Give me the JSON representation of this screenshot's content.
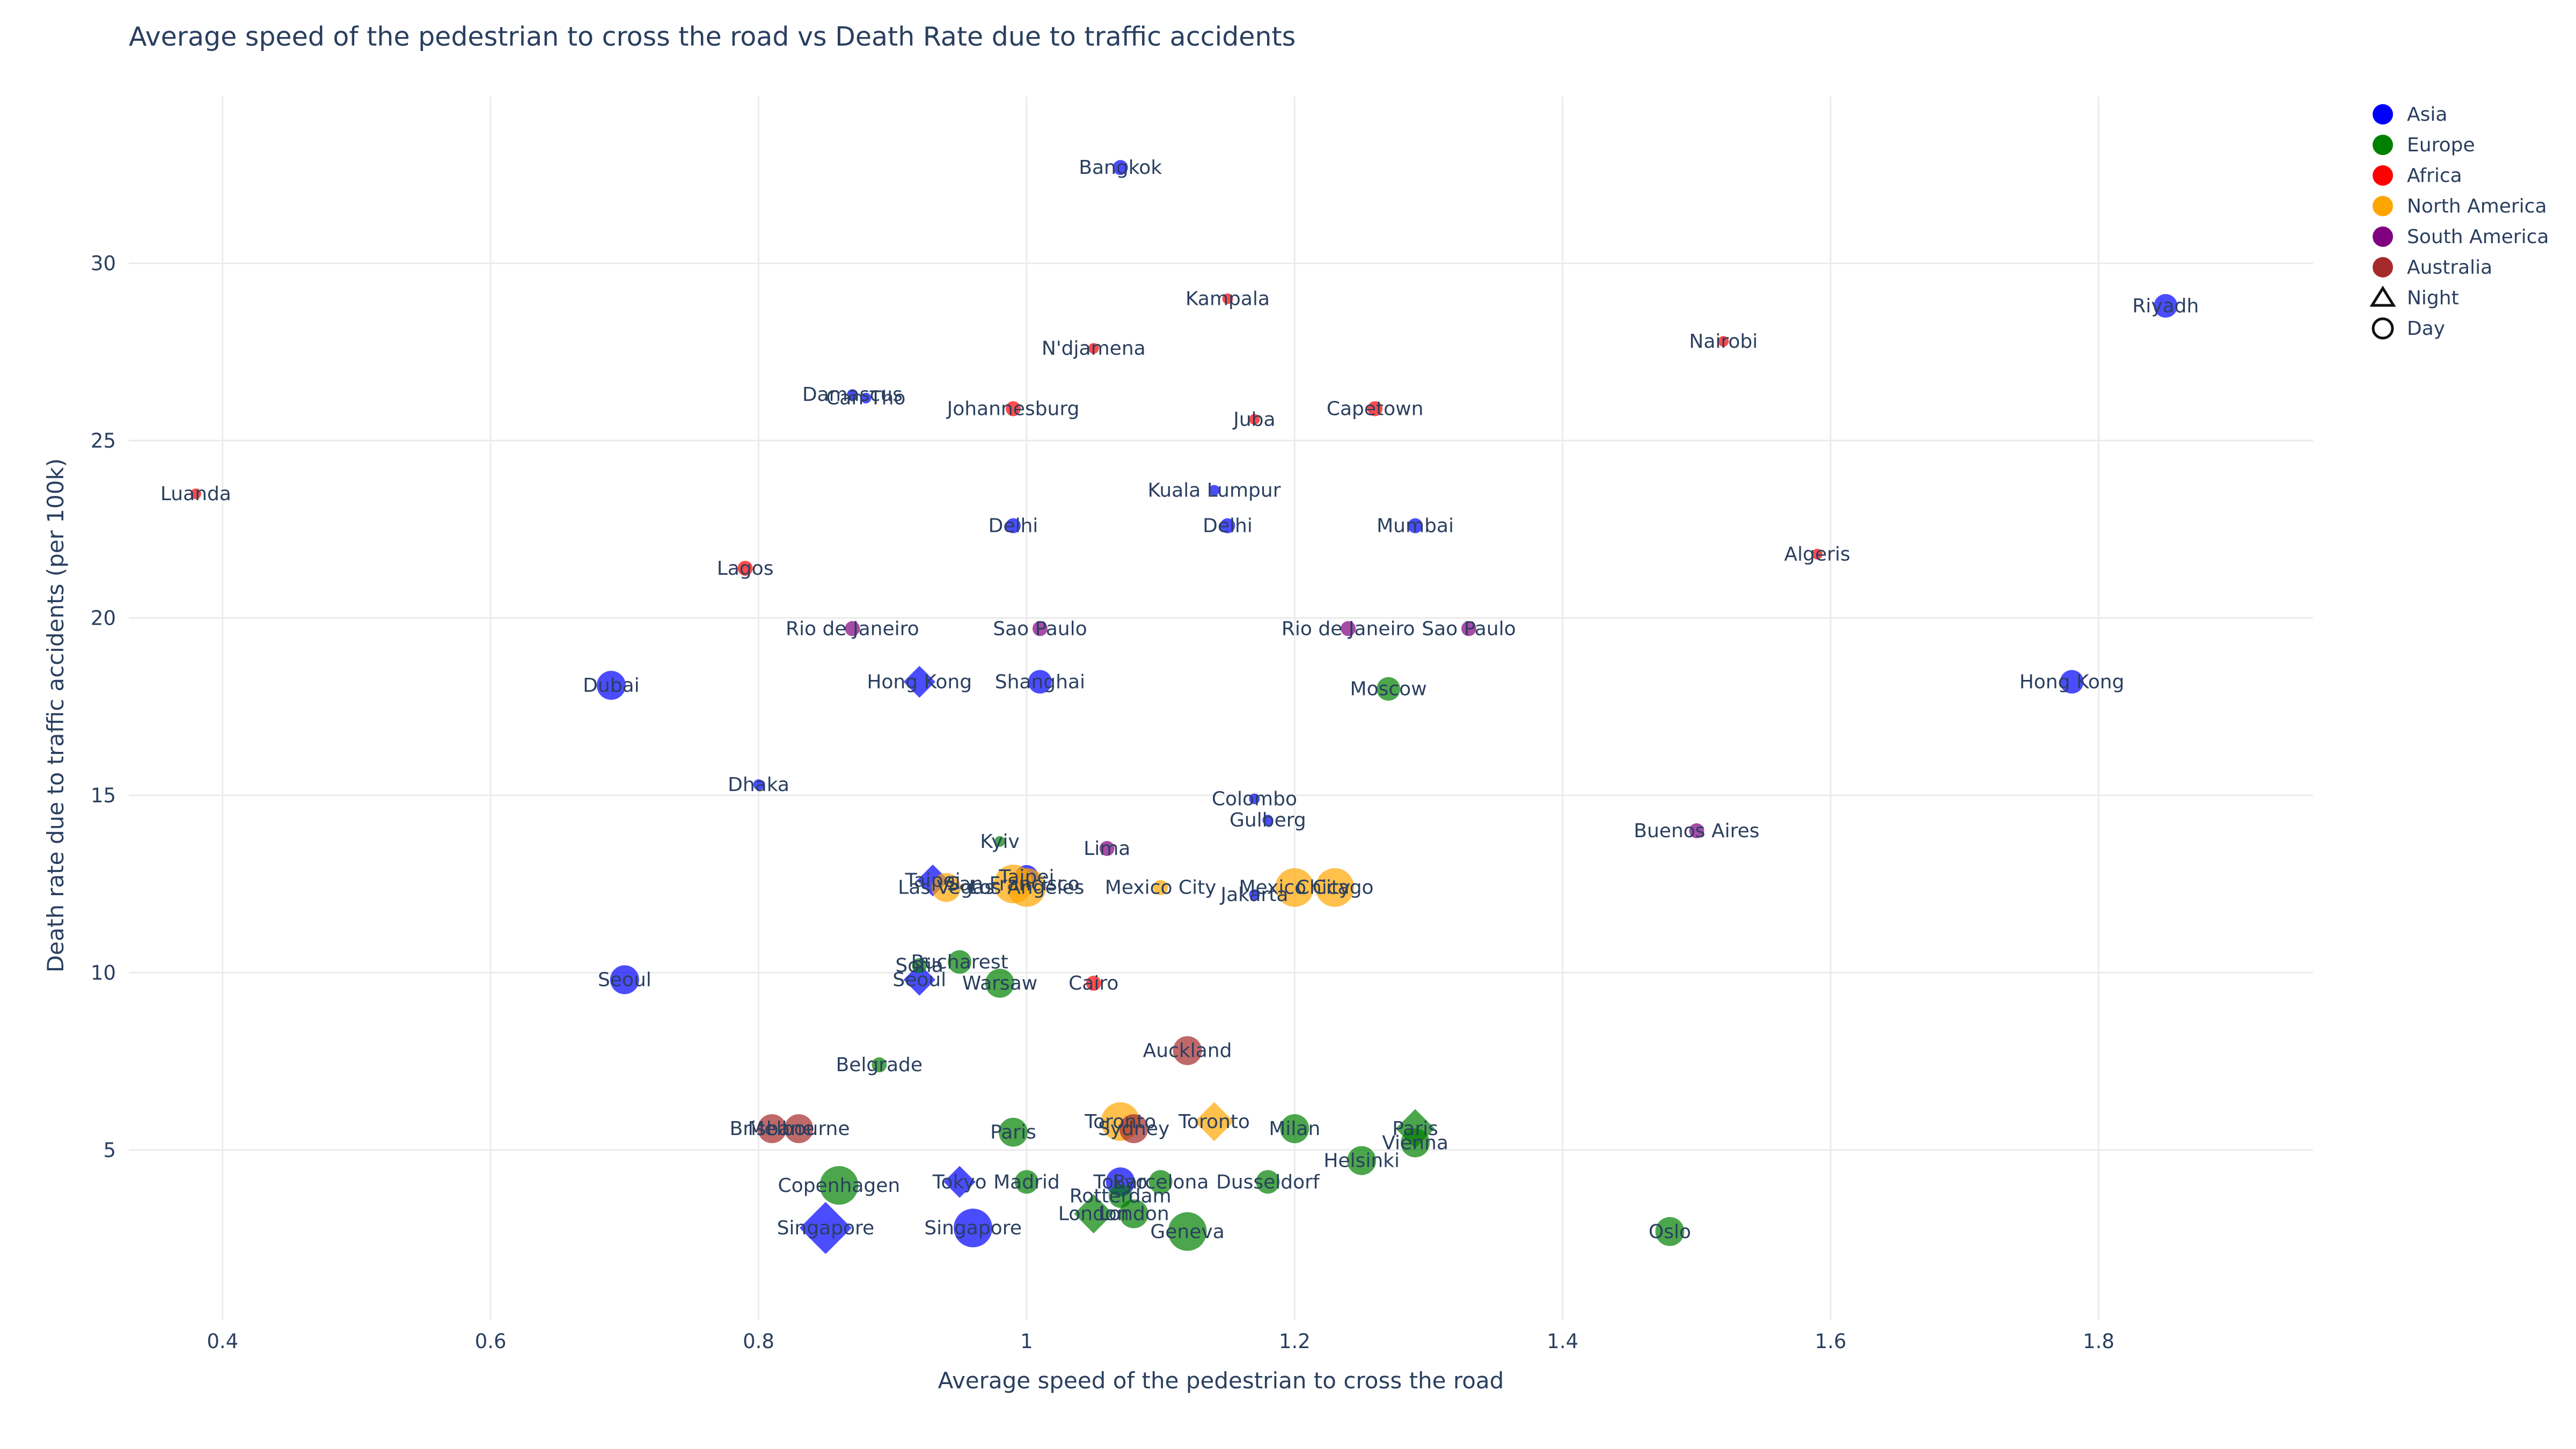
{
  "chart_data": {
    "type": "scatter",
    "title": "Average speed of the pedestrian to cross the road vs Death Rate due to traffic accidents",
    "xlabel": "Average speed of the pedestrian to cross the road",
    "ylabel": "Death rate due to traffic accidents (per 100k)",
    "xlim": [
      0.33,
      1.96
    ],
    "ylim": [
      0.2,
      34.7
    ],
    "x_ticks": [
      0.4,
      0.6,
      0.8,
      1,
      1.2,
      1.4,
      1.6,
      1.8
    ],
    "x_tick_labels": [
      "0.4",
      "0.6",
      "0.8",
      "1",
      "1.2",
      "1.4",
      "1.6",
      "1.8"
    ],
    "y_ticks": [
      5,
      10,
      15,
      20,
      25,
      30
    ],
    "y_tick_labels": [
      "5",
      "10",
      "15",
      "20",
      "25",
      "30"
    ],
    "grid": true,
    "legend_position": "top-right",
    "colors": {
      "Asia": "#0000ff",
      "Europe": "#008000",
      "Africa": "#ff0000",
      "North America": "#ffa500",
      "South America": "#800080",
      "Australia": "#a52a2a"
    },
    "legend": {
      "regions": [
        "Asia",
        "Europe",
        "Africa",
        "North America",
        "South America",
        "Australia"
      ],
      "symbols": [
        {
          "label": "Night",
          "symbol": "triangle"
        },
        {
          "label": "Day",
          "symbol": "circle"
        }
      ]
    },
    "points": [
      {
        "city": "Bangkok",
        "x": 1.07,
        "y": 32.7,
        "region": "Asia",
        "symbol": "circle",
        "size": 1
      },
      {
        "city": "Riyadh",
        "x": 1.85,
        "y": 28.8,
        "region": "Asia",
        "symbol": "circle",
        "size": 2
      },
      {
        "city": "Hong Kong",
        "x": 1.78,
        "y": 18.2,
        "region": "Asia",
        "symbol": "circle",
        "size": 2
      },
      {
        "city": "Dubai",
        "x": 0.69,
        "y": 18.1,
        "region": "Asia",
        "symbol": "circle",
        "size": 3
      },
      {
        "city": "Seoul",
        "x": 0.7,
        "y": 9.8,
        "region": "Asia",
        "symbol": "circle",
        "size": 3
      },
      {
        "city": "Hong Kong",
        "x": 0.92,
        "y": 18.2,
        "region": "Asia",
        "symbol": "diamond",
        "size": 2
      },
      {
        "city": "Shanghai",
        "x": 1.01,
        "y": 18.2,
        "region": "Asia",
        "symbol": "circle",
        "size": 2
      },
      {
        "city": "Delhi",
        "x": 0.99,
        "y": 22.6,
        "region": "Asia",
        "symbol": "circle",
        "size": 1
      },
      {
        "city": "Delhi",
        "x": 1.15,
        "y": 22.6,
        "region": "Asia",
        "symbol": "circle",
        "size": 1
      },
      {
        "city": "Mumbai",
        "x": 1.29,
        "y": 22.6,
        "region": "Asia",
        "symbol": "circle",
        "size": 1
      },
      {
        "city": "Kuala Lumpur",
        "x": 1.14,
        "y": 23.6,
        "region": "Asia",
        "symbol": "circle",
        "size": 0
      },
      {
        "city": "Dhaka",
        "x": 0.8,
        "y": 15.3,
        "region": "Asia",
        "symbol": "circle",
        "size": 0
      },
      {
        "city": "Colombo",
        "x": 1.17,
        "y": 14.9,
        "region": "Asia",
        "symbol": "circle",
        "size": 0
      },
      {
        "city": "Gulberg",
        "x": 1.18,
        "y": 14.3,
        "region": "Asia",
        "symbol": "circle",
        "size": 0
      },
      {
        "city": "Damascus",
        "x": 0.87,
        "y": 26.3,
        "region": "Asia",
        "symbol": "circle",
        "size": 0
      },
      {
        "city": "Can Tho",
        "x": 0.88,
        "y": 26.2,
        "region": "Asia",
        "symbol": "circle",
        "size": 0
      },
      {
        "city": "Taipei",
        "x": 0.93,
        "y": 12.6,
        "region": "Asia",
        "symbol": "diamond",
        "size": 2
      },
      {
        "city": "Taipei",
        "x": 1.0,
        "y": 12.7,
        "region": "Asia",
        "symbol": "circle",
        "size": 2
      },
      {
        "city": "Jakarta",
        "x": 1.17,
        "y": 12.2,
        "region": "Asia",
        "symbol": "circle",
        "size": 0
      },
      {
        "city": "Seoul",
        "x": 0.92,
        "y": 9.8,
        "region": "Asia",
        "symbol": "diamond",
        "size": 2
      },
      {
        "city": "Tokyo",
        "x": 0.95,
        "y": 4.1,
        "region": "Asia",
        "symbol": "diamond",
        "size": 2
      },
      {
        "city": "Tokyo",
        "x": 1.07,
        "y": 4.1,
        "region": "Asia",
        "symbol": "circle",
        "size": 3
      },
      {
        "city": "Singapore",
        "x": 0.85,
        "y": 2.8,
        "region": "Asia",
        "symbol": "diamond",
        "size": 4
      },
      {
        "city": "Singapore",
        "x": 0.96,
        "y": 2.8,
        "region": "Asia",
        "symbol": "circle",
        "size": 4
      },
      {
        "city": "Moscow",
        "x": 1.27,
        "y": 18.0,
        "region": "Europe",
        "symbol": "circle",
        "size": 2
      },
      {
        "city": "Kyiv",
        "x": 0.98,
        "y": 13.7,
        "region": "Europe",
        "symbol": "circle",
        "size": 0
      },
      {
        "city": "Bucharest",
        "x": 0.95,
        "y": 10.3,
        "region": "Europe",
        "symbol": "circle",
        "size": 2
      },
      {
        "city": "Sofia",
        "x": 0.92,
        "y": 10.2,
        "region": "Europe",
        "symbol": "circle",
        "size": 1
      },
      {
        "city": "Warsaw",
        "x": 0.98,
        "y": 9.7,
        "region": "Europe",
        "symbol": "circle",
        "size": 3
      },
      {
        "city": "Belgrade",
        "x": 0.89,
        "y": 7.4,
        "region": "Europe",
        "symbol": "circle",
        "size": 1
      },
      {
        "city": "Paris",
        "x": 0.99,
        "y": 5.5,
        "region": "Europe",
        "symbol": "circle",
        "size": 3
      },
      {
        "city": "Paris",
        "x": 1.29,
        "y": 5.6,
        "region": "Europe",
        "symbol": "diamond",
        "size": 3
      },
      {
        "city": "Milan",
        "x": 1.2,
        "y": 5.6,
        "region": "Europe",
        "symbol": "circle",
        "size": 3
      },
      {
        "city": "Vienna",
        "x": 1.29,
        "y": 5.2,
        "region": "Europe",
        "symbol": "circle",
        "size": 3
      },
      {
        "city": "Helsinki",
        "x": 1.25,
        "y": 4.7,
        "region": "Europe",
        "symbol": "circle",
        "size": 3
      },
      {
        "city": "Copenhagen",
        "x": 0.86,
        "y": 4.0,
        "region": "Europe",
        "symbol": "circle",
        "size": 4
      },
      {
        "city": "Madrid",
        "x": 1.0,
        "y": 4.1,
        "region": "Europe",
        "symbol": "circle",
        "size": 2
      },
      {
        "city": "Barcelona",
        "x": 1.1,
        "y": 4.1,
        "region": "Europe",
        "symbol": "circle",
        "size": 2
      },
      {
        "city": "Dusseldorf",
        "x": 1.18,
        "y": 4.1,
        "region": "Europe",
        "symbol": "circle",
        "size": 2
      },
      {
        "city": "Rotterdam",
        "x": 1.07,
        "y": 3.7,
        "region": "Europe",
        "symbol": "circle",
        "size": 2
      },
      {
        "city": "London",
        "x": 1.05,
        "y": 3.2,
        "region": "Europe",
        "symbol": "diamond",
        "size": 3
      },
      {
        "city": "London",
        "x": 1.08,
        "y": 3.2,
        "region": "Europe",
        "symbol": "circle",
        "size": 3
      },
      {
        "city": "Geneva",
        "x": 1.12,
        "y": 2.7,
        "region": "Europe",
        "symbol": "circle",
        "size": 4
      },
      {
        "city": "Oslo",
        "x": 1.48,
        "y": 2.7,
        "region": "Europe",
        "symbol": "circle",
        "size": 3
      },
      {
        "city": "Kampala",
        "x": 1.15,
        "y": 29.0,
        "region": "Africa",
        "symbol": "circle",
        "size": 0
      },
      {
        "city": "Nairobi",
        "x": 1.52,
        "y": 27.8,
        "region": "Africa",
        "symbol": "circle",
        "size": 0
      },
      {
        "city": "N'djamena",
        "x": 1.05,
        "y": 27.6,
        "region": "Africa",
        "symbol": "circle",
        "size": 0
      },
      {
        "city": "Johannesburg",
        "x": 0.99,
        "y": 25.9,
        "region": "Africa",
        "symbol": "circle",
        "size": 1
      },
      {
        "city": "Capetown",
        "x": 1.26,
        "y": 25.9,
        "region": "Africa",
        "symbol": "circle",
        "size": 1
      },
      {
        "city": "Juba",
        "x": 1.17,
        "y": 25.6,
        "region": "Africa",
        "symbol": "circle",
        "size": 0
      },
      {
        "city": "Luanda",
        "x": 0.38,
        "y": 23.5,
        "region": "Africa",
        "symbol": "circle",
        "size": 0
      },
      {
        "city": "Algeris",
        "x": 1.59,
        "y": 21.8,
        "region": "Africa",
        "symbol": "circle",
        "size": 0
      },
      {
        "city": "Lagos",
        "x": 0.79,
        "y": 21.4,
        "region": "Africa",
        "symbol": "circle",
        "size": 1
      },
      {
        "city": "Cairo",
        "x": 1.05,
        "y": 9.7,
        "region": "Africa",
        "symbol": "circle",
        "size": 1
      },
      {
        "city": "Las Vegas",
        "x": 0.94,
        "y": 12.4,
        "region": "North America",
        "symbol": "circle",
        "size": 3
      },
      {
        "city": "San Francisco",
        "x": 0.99,
        "y": 12.5,
        "region": "North America",
        "symbol": "circle",
        "size": 4
      },
      {
        "city": "Los Angeles",
        "x": 1.0,
        "y": 12.4,
        "region": "North America",
        "symbol": "circle",
        "size": 4
      },
      {
        "city": "Mexico City",
        "x": 1.1,
        "y": 12.4,
        "region": "North America",
        "symbol": "circle",
        "size": 1
      },
      {
        "city": "Mexico City",
        "x": 1.2,
        "y": 12.4,
        "region": "North America",
        "symbol": "circle",
        "size": 4
      },
      {
        "city": "Chicago",
        "x": 1.23,
        "y": 12.4,
        "region": "North America",
        "symbol": "circle",
        "size": 4
      },
      {
        "city": "Toronto",
        "x": 1.07,
        "y": 5.8,
        "region": "North America",
        "symbol": "circle",
        "size": 4
      },
      {
        "city": "Toronto",
        "x": 1.14,
        "y": 5.8,
        "region": "North America",
        "symbol": "diamond",
        "size": 3
      },
      {
        "city": "Rio de Janeiro",
        "x": 0.87,
        "y": 19.7,
        "region": "South America",
        "symbol": "circle",
        "size": 1
      },
      {
        "city": "Sao Paulo",
        "x": 1.01,
        "y": 19.7,
        "region": "South America",
        "symbol": "circle",
        "size": 1
      },
      {
        "city": "Rio de Janeiro",
        "x": 1.24,
        "y": 19.7,
        "region": "South America",
        "symbol": "circle",
        "size": 1
      },
      {
        "city": "Sao Paulo",
        "x": 1.33,
        "y": 19.7,
        "region": "South America",
        "symbol": "circle",
        "size": 1
      },
      {
        "city": "Lima",
        "x": 1.06,
        "y": 13.5,
        "region": "South America",
        "symbol": "circle",
        "size": 1
      },
      {
        "city": "Buenos Aires",
        "x": 1.5,
        "y": 14.0,
        "region": "South America",
        "symbol": "circle",
        "size": 1
      },
      {
        "city": "Auckland",
        "x": 1.12,
        "y": 7.8,
        "region": "Australia",
        "symbol": "circle",
        "size": 3
      },
      {
        "city": "Sydney",
        "x": 1.08,
        "y": 5.6,
        "region": "Australia",
        "symbol": "circle",
        "size": 3
      },
      {
        "city": "Brisbane",
        "x": 0.81,
        "y": 5.6,
        "region": "Australia",
        "symbol": "circle",
        "size": 3
      },
      {
        "city": "Melbourne",
        "x": 0.83,
        "y": 5.6,
        "region": "Australia",
        "symbol": "circle",
        "size": 3
      }
    ]
  }
}
